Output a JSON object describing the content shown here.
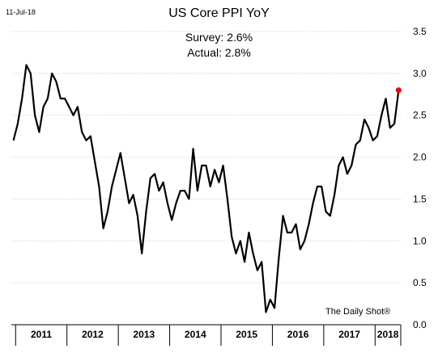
{
  "date_stamp": "11-Jul-18",
  "source": "The Daily Shot®",
  "chart_data": {
    "type": "line",
    "title": "US Core PPI YoY",
    "annotations": [
      "Survey: 2.6%",
      "Actual:  2.8%"
    ],
    "xlabel": "",
    "ylabel": "",
    "ylim": [
      0,
      3.5
    ],
    "yticks": [
      "0.0",
      "0.5",
      "1.0",
      "1.5",
      "2.0",
      "2.5",
      "3.0",
      "3.5"
    ],
    "year_labels": [
      "2011",
      "2012",
      "2013",
      "2014",
      "2015",
      "2016",
      "2017",
      "2018"
    ],
    "x_start": "2010-12",
    "x_end": "2018-06",
    "grid": "horizontal",
    "line_color": "#000000",
    "highlight_color": "#ff0000",
    "series": [
      {
        "x": [
          "2010-12",
          "2011-01",
          "2011-02",
          "2011-03",
          "2011-04",
          "2011-05",
          "2011-06",
          "2011-07",
          "2011-08",
          "2011-09",
          "2011-10",
          "2011-11",
          "2011-12",
          "2012-01",
          "2012-02",
          "2012-03",
          "2012-04",
          "2012-05",
          "2012-06",
          "2012-07",
          "2012-08",
          "2012-09",
          "2012-10",
          "2012-11",
          "2012-12",
          "2013-01",
          "2013-02",
          "2013-03",
          "2013-04",
          "2013-05",
          "2013-06",
          "2013-07",
          "2013-08",
          "2013-09",
          "2013-10",
          "2013-11",
          "2013-12",
          "2014-01",
          "2014-02",
          "2014-03",
          "2014-04",
          "2014-05",
          "2014-06",
          "2014-07",
          "2014-08",
          "2014-09",
          "2014-10",
          "2014-11",
          "2014-12",
          "2015-01",
          "2015-02",
          "2015-03",
          "2015-04",
          "2015-05",
          "2015-06",
          "2015-07",
          "2015-08",
          "2015-09",
          "2015-10",
          "2015-11",
          "2015-12",
          "2016-01",
          "2016-02",
          "2016-03",
          "2016-04",
          "2016-05",
          "2016-06",
          "2016-07",
          "2016-08",
          "2016-09",
          "2016-10",
          "2016-11",
          "2016-12",
          "2017-01",
          "2017-02",
          "2017-03",
          "2017-04",
          "2017-05",
          "2017-06",
          "2017-07",
          "2017-08",
          "2017-09",
          "2017-10",
          "2017-11",
          "2017-12",
          "2018-01",
          "2018-02",
          "2018-03",
          "2018-04",
          "2018-05",
          "2018-06"
        ],
        "values": [
          2.2,
          2.4,
          2.7,
          3.1,
          3.0,
          2.5,
          2.3,
          2.6,
          2.7,
          3.0,
          2.9,
          2.7,
          2.7,
          2.6,
          2.5,
          2.6,
          2.3,
          2.2,
          2.25,
          1.95,
          1.65,
          1.15,
          1.35,
          1.65,
          1.85,
          2.05,
          1.75,
          1.45,
          1.55,
          1.3,
          0.85,
          1.35,
          1.75,
          1.8,
          1.6,
          1.7,
          1.45,
          1.25,
          1.45,
          1.6,
          1.6,
          1.5,
          2.1,
          1.6,
          1.9,
          1.9,
          1.65,
          1.85,
          1.7,
          1.9,
          1.5,
          1.05,
          0.85,
          1.0,
          0.75,
          1.1,
          0.85,
          0.65,
          0.75,
          0.15,
          0.3,
          0.2,
          0.8,
          1.3,
          1.1,
          1.1,
          1.2,
          0.9,
          1.0,
          1.2,
          1.45,
          1.65,
          1.65,
          1.35,
          1.3,
          1.55,
          1.9,
          2.0,
          1.8,
          1.9,
          2.15,
          2.2,
          2.45,
          2.35,
          2.2,
          2.25,
          2.5,
          2.7,
          2.35,
          2.4,
          2.8
        ],
        "highlight_last": true
      }
    ]
  }
}
